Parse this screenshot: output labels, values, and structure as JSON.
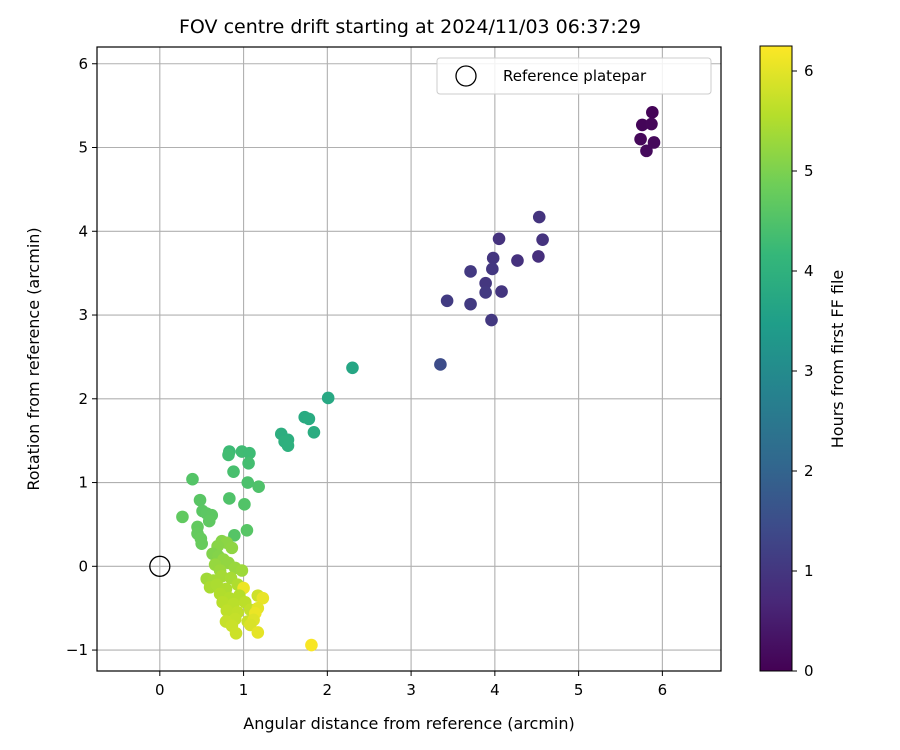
{
  "chart_data": {
    "type": "scatter",
    "title": "FOV centre drift starting at 2024/11/03 06:37:29",
    "xlabel": "Angular distance from reference (arcmin)",
    "ylabel": "Rotation from reference (arcmin)",
    "xlim": [
      -0.75,
      6.7
    ],
    "ylim": [
      -1.25,
      6.2
    ],
    "xticks": [
      0,
      1,
      2,
      3,
      4,
      5,
      6
    ],
    "yticks": [
      -1,
      0,
      1,
      2,
      3,
      4,
      5,
      6
    ],
    "grid": true,
    "legend": {
      "placement": "upper right",
      "entries": [
        "Reference platepar"
      ]
    },
    "reference_point": {
      "x": 0,
      "y": 0,
      "label": "Reference platepar"
    },
    "colorbar": {
      "label": "Hours from first FF file",
      "colormap": "viridis",
      "range": [
        0,
        6.25
      ],
      "ticks": [
        0,
        1,
        2,
        3,
        4,
        5,
        6
      ]
    },
    "colormap_stops": [
      "#440154",
      "#482878",
      "#3e4989",
      "#31688e",
      "#26828e",
      "#1f9e89",
      "#35b779",
      "#6ece58",
      "#b5de2b",
      "#fde725"
    ],
    "points": [
      {
        "x": 5.88,
        "y": 5.42,
        "h": 0.05
      },
      {
        "x": 5.76,
        "y": 5.27,
        "h": 0.08
      },
      {
        "x": 5.87,
        "y": 5.28,
        "h": 0.1
      },
      {
        "x": 5.74,
        "y": 5.1,
        "h": 0.12
      },
      {
        "x": 5.9,
        "y": 5.06,
        "h": 0.14
      },
      {
        "x": 5.81,
        "y": 4.96,
        "h": 0.16
      },
      {
        "x": 4.53,
        "y": 4.17,
        "h": 0.95
      },
      {
        "x": 4.05,
        "y": 3.91,
        "h": 0.9
      },
      {
        "x": 4.57,
        "y": 3.9,
        "h": 0.92
      },
      {
        "x": 3.98,
        "y": 3.68,
        "h": 0.98
      },
      {
        "x": 4.27,
        "y": 3.65,
        "h": 0.88
      },
      {
        "x": 4.52,
        "y": 3.7,
        "h": 0.85
      },
      {
        "x": 3.71,
        "y": 3.52,
        "h": 1.05
      },
      {
        "x": 3.97,
        "y": 3.55,
        "h": 1.02
      },
      {
        "x": 3.89,
        "y": 3.38,
        "h": 1.0
      },
      {
        "x": 3.89,
        "y": 3.27,
        "h": 1.07
      },
      {
        "x": 4.08,
        "y": 3.28,
        "h": 0.97
      },
      {
        "x": 3.43,
        "y": 3.17,
        "h": 1.1
      },
      {
        "x": 3.71,
        "y": 3.13,
        "h": 1.08
      },
      {
        "x": 3.96,
        "y": 2.94,
        "h": 1.03
      },
      {
        "x": 3.35,
        "y": 2.41,
        "h": 1.45
      },
      {
        "x": 2.3,
        "y": 2.37,
        "h": 3.7
      },
      {
        "x": 2.01,
        "y": 2.01,
        "h": 3.75
      },
      {
        "x": 1.73,
        "y": 1.78,
        "h": 3.8
      },
      {
        "x": 1.78,
        "y": 1.76,
        "h": 3.82
      },
      {
        "x": 1.84,
        "y": 1.6,
        "h": 3.85
      },
      {
        "x": 1.45,
        "y": 1.58,
        "h": 3.9
      },
      {
        "x": 1.53,
        "y": 1.51,
        "h": 3.92
      },
      {
        "x": 1.49,
        "y": 1.49,
        "h": 3.94
      },
      {
        "x": 1.53,
        "y": 1.44,
        "h": 3.96
      },
      {
        "x": 0.83,
        "y": 1.37,
        "h": 4.25
      },
      {
        "x": 0.98,
        "y": 1.37,
        "h": 4.3
      },
      {
        "x": 1.07,
        "y": 1.35,
        "h": 4.28
      },
      {
        "x": 0.82,
        "y": 1.33,
        "h": 4.32
      },
      {
        "x": 1.06,
        "y": 1.23,
        "h": 4.35
      },
      {
        "x": 0.88,
        "y": 1.13,
        "h": 4.4
      },
      {
        "x": 0.39,
        "y": 1.04,
        "h": 4.55
      },
      {
        "x": 1.05,
        "y": 1.0,
        "h": 4.45
      },
      {
        "x": 1.18,
        "y": 0.95,
        "h": 4.48
      },
      {
        "x": 0.83,
        "y": 0.81,
        "h": 4.5
      },
      {
        "x": 0.48,
        "y": 0.79,
        "h": 4.6
      },
      {
        "x": 1.01,
        "y": 0.74,
        "h": 4.52
      },
      {
        "x": 0.51,
        "y": 0.66,
        "h": 4.62
      },
      {
        "x": 0.56,
        "y": 0.63,
        "h": 4.64
      },
      {
        "x": 0.62,
        "y": 0.61,
        "h": 4.66
      },
      {
        "x": 0.27,
        "y": 0.59,
        "h": 4.7
      },
      {
        "x": 0.59,
        "y": 0.54,
        "h": 4.68
      },
      {
        "x": 0.45,
        "y": 0.47,
        "h": 4.72
      },
      {
        "x": 1.04,
        "y": 0.43,
        "h": 4.58
      },
      {
        "x": 0.45,
        "y": 0.39,
        "h": 4.74
      },
      {
        "x": 0.89,
        "y": 0.37,
        "h": 4.56
      },
      {
        "x": 0.49,
        "y": 0.33,
        "h": 4.76
      },
      {
        "x": 0.5,
        "y": 0.27,
        "h": 4.78
      },
      {
        "x": 0.74,
        "y": 0.3,
        "h": 5.1
      },
      {
        "x": 0.8,
        "y": 0.28,
        "h": 5.15
      },
      {
        "x": 0.69,
        "y": 0.24,
        "h": 5.12
      },
      {
        "x": 0.86,
        "y": 0.22,
        "h": 5.18
      },
      {
        "x": 0.63,
        "y": 0.15,
        "h": 5.05
      },
      {
        "x": 0.7,
        "y": 0.12,
        "h": 5.08
      },
      {
        "x": 0.76,
        "y": 0.08,
        "h": 5.2
      },
      {
        "x": 0.82,
        "y": 0.04,
        "h": 5.22
      },
      {
        "x": 0.66,
        "y": 0.02,
        "h": 5.25
      },
      {
        "x": 0.9,
        "y": -0.02,
        "h": 5.28
      },
      {
        "x": 0.72,
        "y": -0.05,
        "h": 5.3
      },
      {
        "x": 0.98,
        "y": -0.05,
        "h": 5.32
      },
      {
        "x": 0.56,
        "y": -0.15,
        "h": 5.35
      },
      {
        "x": 0.64,
        "y": -0.17,
        "h": 5.38
      },
      {
        "x": 0.74,
        "y": -0.12,
        "h": 5.4
      },
      {
        "x": 0.85,
        "y": -0.14,
        "h": 5.42
      },
      {
        "x": 0.6,
        "y": -0.25,
        "h": 5.44
      },
      {
        "x": 0.68,
        "y": -0.22,
        "h": 5.46
      },
      {
        "x": 0.79,
        "y": -0.27,
        "h": 5.48
      },
      {
        "x": 0.93,
        "y": -0.22,
        "h": 5.5
      },
      {
        "x": 1.0,
        "y": -0.26,
        "h": 6.1
      },
      {
        "x": 0.72,
        "y": -0.33,
        "h": 5.52
      },
      {
        "x": 0.83,
        "y": -0.38,
        "h": 5.54
      },
      {
        "x": 0.95,
        "y": -0.35,
        "h": 5.56
      },
      {
        "x": 0.75,
        "y": -0.43,
        "h": 5.58
      },
      {
        "x": 0.88,
        "y": -0.45,
        "h": 5.6
      },
      {
        "x": 1.02,
        "y": -0.43,
        "h": 5.62
      },
      {
        "x": 0.8,
        "y": -0.53,
        "h": 5.64
      },
      {
        "x": 0.93,
        "y": -0.55,
        "h": 5.66
      },
      {
        "x": 1.08,
        "y": -0.52,
        "h": 5.68
      },
      {
        "x": 0.9,
        "y": -0.63,
        "h": 5.7
      },
      {
        "x": 0.79,
        "y": -0.66,
        "h": 5.72
      },
      {
        "x": 1.05,
        "y": -0.66,
        "h": 5.74
      },
      {
        "x": 0.86,
        "y": -0.71,
        "h": 5.76
      },
      {
        "x": 0.91,
        "y": -0.8,
        "h": 5.78
      },
      {
        "x": 1.17,
        "y": -0.35,
        "h": 5.8
      },
      {
        "x": 1.23,
        "y": -0.38,
        "h": 6.05
      },
      {
        "x": 1.17,
        "y": -0.5,
        "h": 6.0
      },
      {
        "x": 1.14,
        "y": -0.56,
        "h": 6.08
      },
      {
        "x": 1.12,
        "y": -0.64,
        "h": 5.95
      },
      {
        "x": 1.08,
        "y": -0.7,
        "h": 5.9
      },
      {
        "x": 1.17,
        "y": -0.79,
        "h": 6.02
      },
      {
        "x": 1.81,
        "y": -0.94,
        "h": 6.2
      }
    ]
  }
}
